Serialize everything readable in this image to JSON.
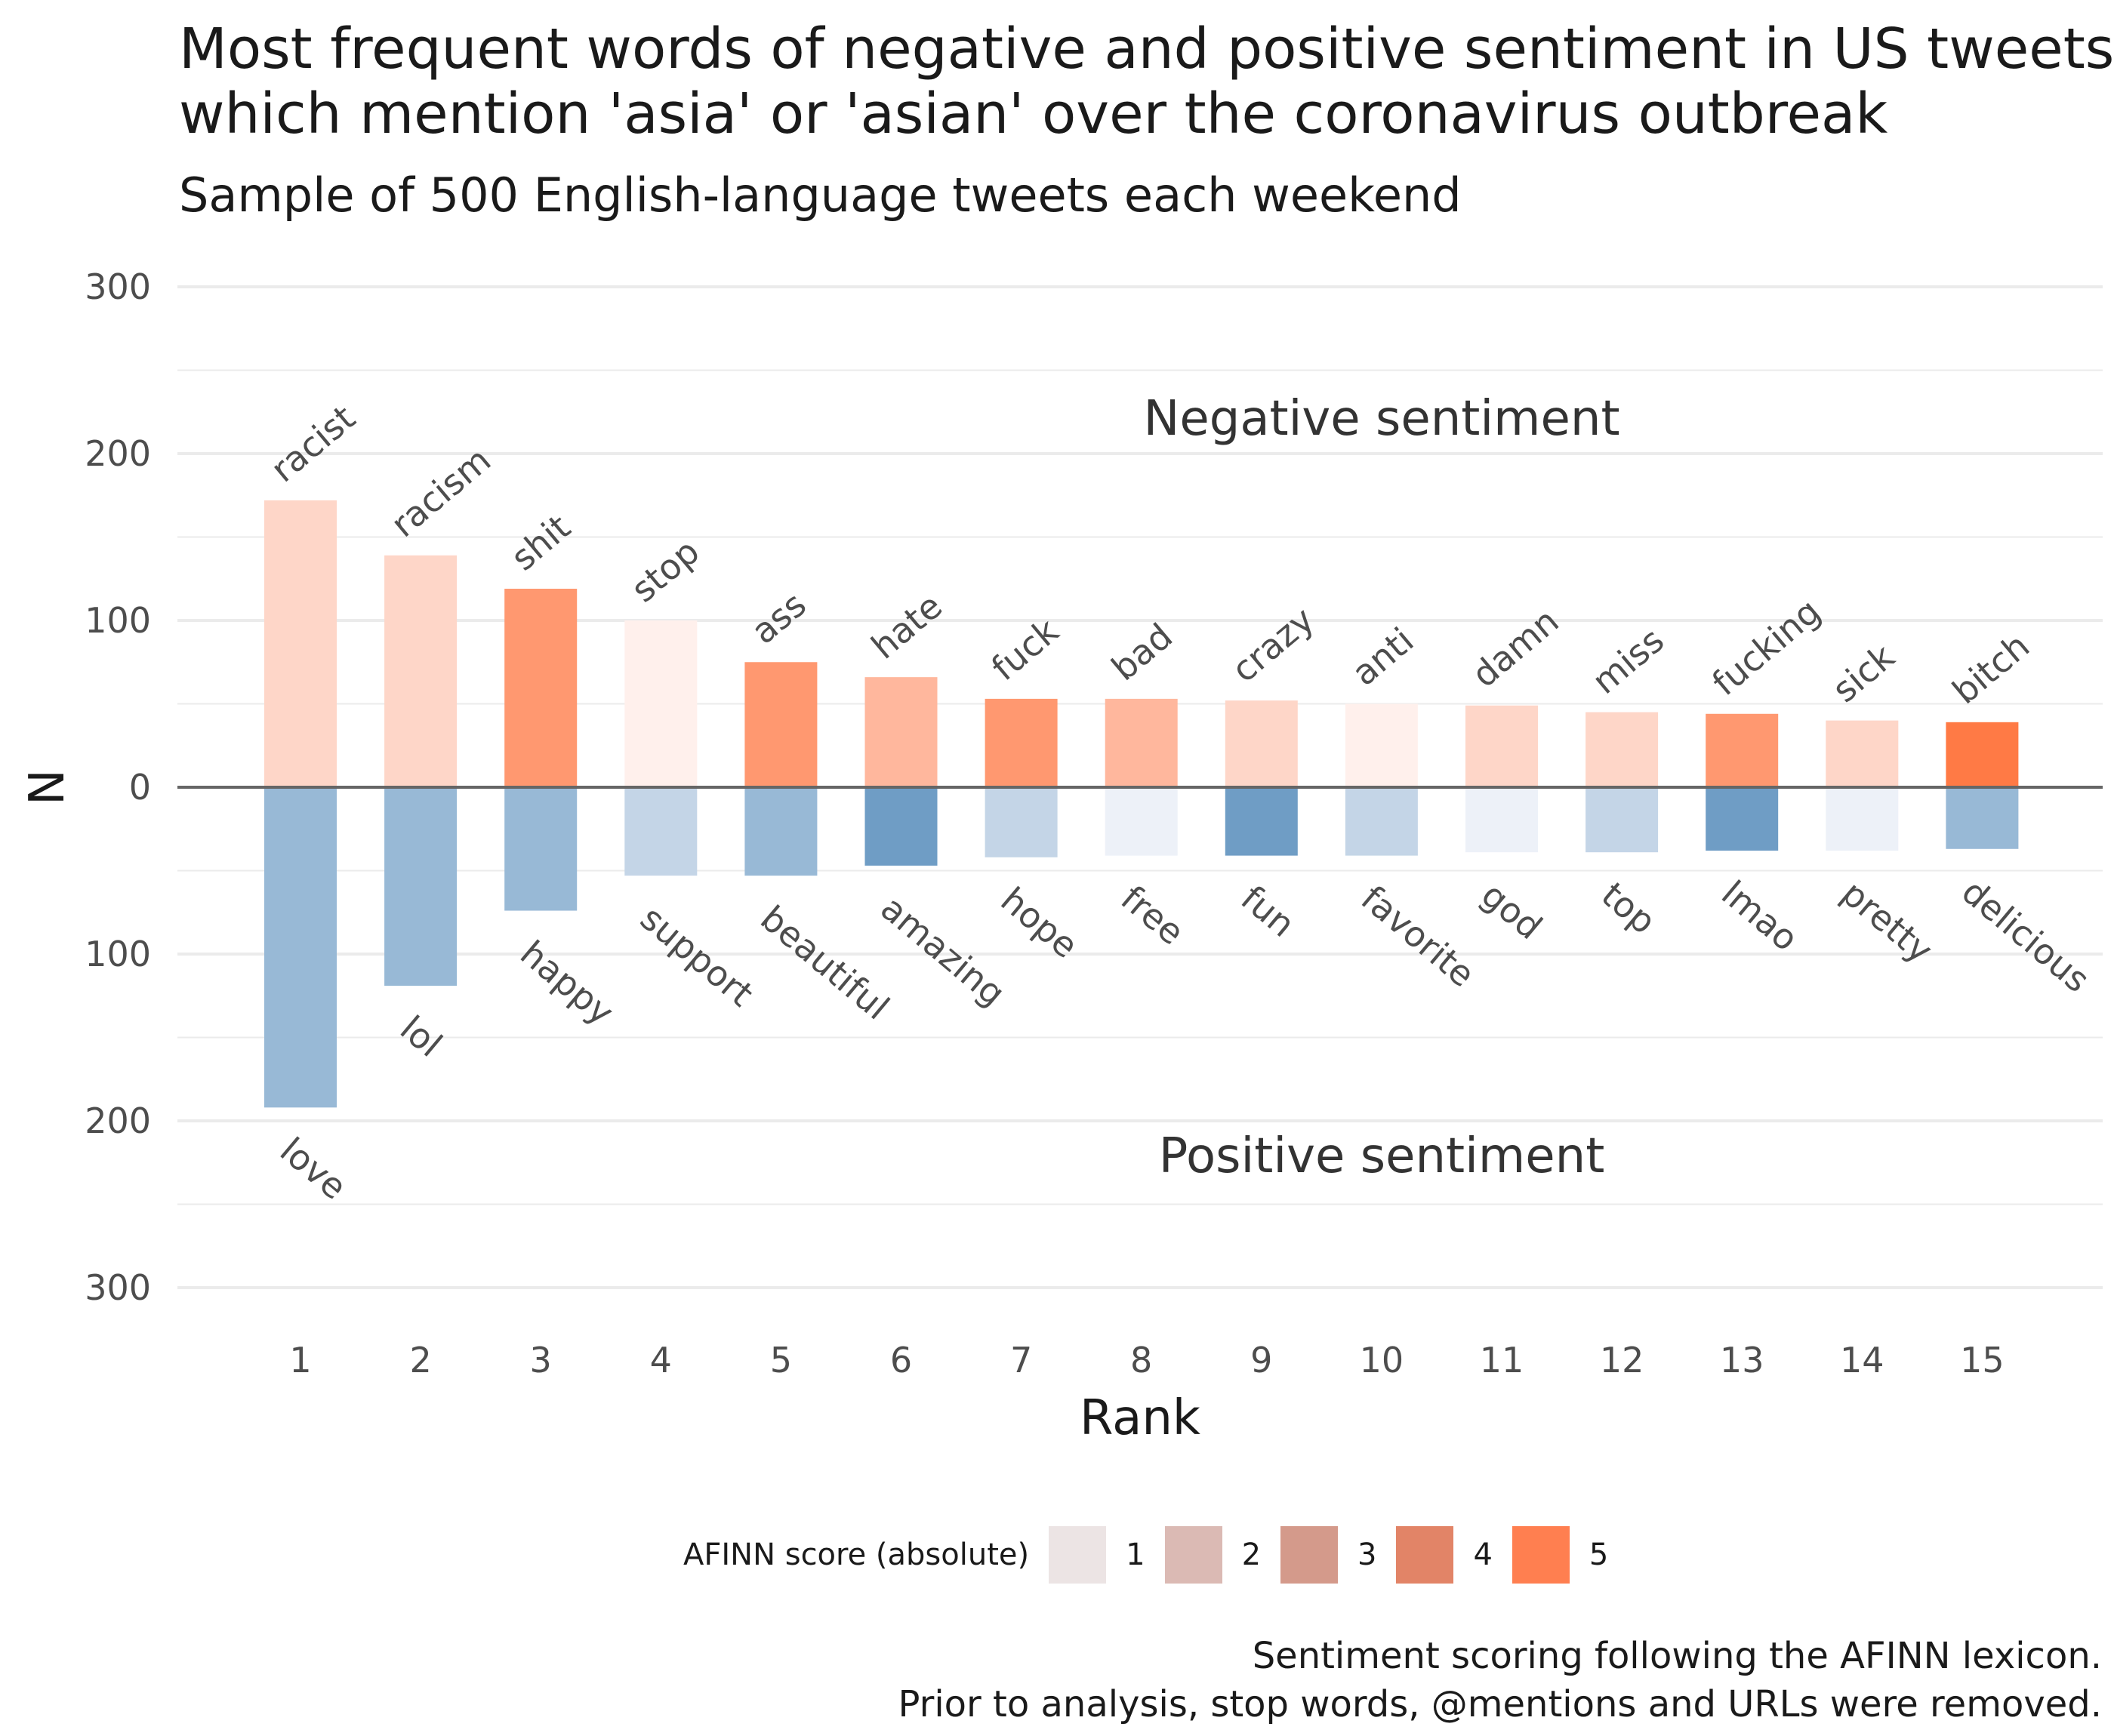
{
  "title_lines": [
    "Most frequent words of negative and positive sentiment in US tweets",
    "which mention 'asia' or 'asian' over the coronavirus outbreak"
  ],
  "subtitle": "Sample of 500 English-language tweets each weekend",
  "caption_lines": [
    "Sentiment scoring following the AFINN lexicon.",
    "Prior to analysis, stop words, @mentions and URLs were removed."
  ],
  "legend": {
    "title": "AFINN score (absolute)",
    "items": [
      {
        "label": "1",
        "color": "#ece4e4"
      },
      {
        "label": "2",
        "color": "#dbbab4"
      },
      {
        "label": "3",
        "color": "#d49a8b"
      },
      {
        "label": "4",
        "color": "#e28467"
      },
      {
        "label": "5",
        "color": "#ff7f50"
      }
    ]
  },
  "colors": {
    "negative_by_score": [
      "#fff0ec",
      "#fed6c8",
      "#ffb79d",
      "#ff9870",
      "#ff7a45"
    ],
    "positive_by_score": [
      "#edf1f8",
      "#c4d5e7",
      "#98b9d6",
      "#6f9dc5",
      "#4a7fb0"
    ],
    "zero_line": "#666666",
    "grid": "#ebebeb"
  },
  "chart_data": {
    "type": "bar",
    "xlabel": "Rank",
    "ylabel": "N",
    "ylim": [
      -300,
      300
    ],
    "y_ticks": [
      {
        "value": 300,
        "label": "300"
      },
      {
        "value": 200,
        "label": "200"
      },
      {
        "value": 100,
        "label": "100"
      },
      {
        "value": 0,
        "label": "0"
      },
      {
        "value": -100,
        "label": "100"
      },
      {
        "value": -200,
        "label": "200"
      },
      {
        "value": -300,
        "label": "300"
      }
    ],
    "ranks": [
      "1",
      "2",
      "3",
      "4",
      "5",
      "6",
      "7",
      "8",
      "9",
      "10",
      "11",
      "12",
      "13",
      "14",
      "15"
    ],
    "annotations": {
      "top": "Negative sentiment",
      "bottom": "Positive sentiment"
    },
    "series": [
      {
        "name": "Negative sentiment",
        "words": [
          "racist",
          "racism",
          "shit",
          "stop",
          "ass",
          "hate",
          "fuck",
          "bad",
          "crazy",
          "anti",
          "damn",
          "miss",
          "fucking",
          "sick",
          "bitch"
        ],
        "values": [
          172,
          139,
          119,
          100,
          75,
          66,
          53,
          53,
          52,
          50,
          49,
          45,
          44,
          40,
          39
        ],
        "afinn_abs": [
          2,
          2,
          4,
          1,
          4,
          3,
          4,
          3,
          2,
          1,
          2,
          2,
          4,
          2,
          5
        ]
      },
      {
        "name": "Positive sentiment",
        "words": [
          "love",
          "lol",
          "happy",
          "support",
          "beautiful",
          "amazing",
          "hope",
          "free",
          "fun",
          "favorite",
          "god",
          "top",
          "lmao",
          "pretty",
          "delicious"
        ],
        "values": [
          192,
          119,
          74,
          53,
          53,
          47,
          42,
          41,
          41,
          41,
          39,
          39,
          38,
          38,
          37
        ],
        "afinn_abs": [
          3,
          3,
          3,
          2,
          3,
          4,
          2,
          1,
          4,
          2,
          1,
          2,
          4,
          1,
          3
        ]
      }
    ]
  }
}
